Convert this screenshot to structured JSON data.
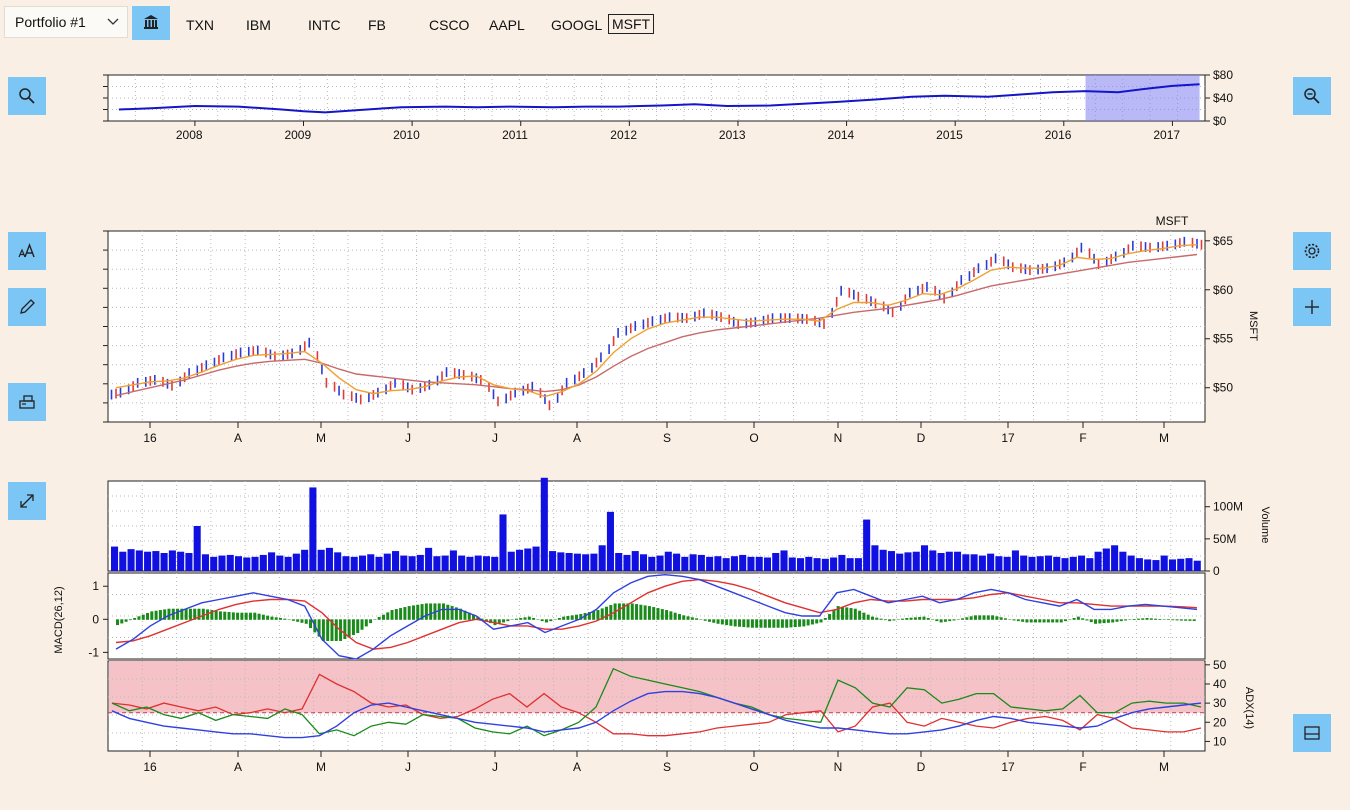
{
  "toolbar": {
    "portfolio_label": "Portfolio #1",
    "tickers": [
      "TXN",
      "IBM",
      "INTC",
      "FB",
      "CSCO",
      "AAPL",
      "GOOGL",
      "MSFT"
    ],
    "active_ticker": "MSFT"
  },
  "icons": {
    "bank": "bank-icon",
    "zoom_in": "search-icon",
    "zoom_out": "zoom-out-icon",
    "text": "text-size-icon",
    "draw": "pencil-icon",
    "print": "print-icon",
    "expand": "expand-icon",
    "settings": "gear-icon",
    "add": "plus-icon",
    "layout": "layout-icon"
  },
  "colors": {
    "background": "#f9efe4",
    "button": "#7cc6f5",
    "price_line": "#1515c8",
    "up_bar": "#2a3bd6",
    "down_bar": "#e03a3a",
    "ma_fast": "#f0a030",
    "ma_slow": "#c86a6a",
    "volume": "#1010e0",
    "macd_line": "#3040e0",
    "signal_line": "#e03030",
    "histogram": "#1a8a1a",
    "adx_band": "#f5c2c8"
  },
  "chart_data": [
    {
      "type": "line",
      "name": "overview",
      "x_ticks": [
        "2008",
        "2009",
        "2010",
        "2011",
        "2012",
        "2013",
        "2014",
        "2015",
        "2016",
        "2017"
      ],
      "y_ticks": [
        "$80",
        "$40",
        "$0"
      ],
      "ylim": [
        0,
        80
      ],
      "x": [
        2007.3,
        2007.6,
        2008.0,
        2008.4,
        2008.8,
        2009.0,
        2009.2,
        2009.5,
        2009.9,
        2010.3,
        2010.6,
        2010.9,
        2011.3,
        2011.6,
        2011.9,
        2012.3,
        2012.6,
        2012.9,
        2013.3,
        2013.6,
        2013.9,
        2014.3,
        2014.6,
        2014.9,
        2015.3,
        2015.6,
        2015.9,
        2016.2,
        2016.5,
        2016.8,
        2017.0,
        2017.25
      ],
      "y": [
        20,
        22,
        26,
        25,
        20,
        17,
        15,
        19,
        24,
        25,
        24,
        25,
        24,
        25,
        25,
        27,
        29,
        26,
        27,
        30,
        33,
        38,
        42,
        44,
        42,
        46,
        50,
        52,
        50,
        57,
        61,
        64
      ],
      "selection": [
        2016.2,
        2017.25
      ]
    },
    {
      "type": "ohlc",
      "name": "MSFT",
      "title": "MSFT",
      "ylabel": "MSFT",
      "x_ticks": [
        "16",
        "A",
        "M",
        "J",
        "J",
        "A",
        "S",
        "O",
        "N",
        "D",
        "17",
        "F",
        "M"
      ],
      "y_ticks": [
        "$65",
        "$60",
        "$55",
        "$50"
      ],
      "ylim": [
        46.5,
        66
      ],
      "close": [
        49.5,
        50.5,
        50.8,
        50.2,
        51.5,
        52.3,
        53.1,
        53.6,
        53.8,
        53.2,
        53.5,
        54.6,
        50.5,
        49.3,
        48.8,
        49.5,
        50.5,
        49.8,
        50.3,
        51.6,
        51.3,
        50.8,
        48.6,
        49.5,
        50.1,
        48.2,
        50.5,
        51.5,
        53.1,
        55.6,
        56.3,
        56.8,
        57.2,
        57.1,
        57.6,
        57.2,
        56.5,
        56.7,
        57.1,
        57.1,
        57.0,
        56.5,
        59.9,
        59.3,
        58.6,
        57.7,
        59.7,
        60.3,
        59.1,
        61.0,
        62.2,
        63.2,
        62.3,
        62.0,
        62.2,
        62.8,
        64.3,
        62.6,
        63.4,
        64.5,
        64.3,
        64.5,
        64.9,
        64.6
      ],
      "ma_fast": [
        50.0,
        50.3,
        50.6,
        50.7,
        51.0,
        51.6,
        52.3,
        52.9,
        53.3,
        53.4,
        53.5,
        53.7,
        52.5,
        51.0,
        49.8,
        49.4,
        49.7,
        49.8,
        50.1,
        50.7,
        51.1,
        51.2,
        50.3,
        49.9,
        49.7,
        49.1,
        49.6,
        50.4,
        51.7,
        53.6,
        55.0,
        56.0,
        56.6,
        56.9,
        57.2,
        57.2,
        57.0,
        56.8,
        56.9,
        57.0,
        57.0,
        56.8,
        58.0,
        58.7,
        58.7,
        58.4,
        58.9,
        59.6,
        59.5,
        60.1,
        61.0,
        62.0,
        62.3,
        62.2,
        62.2,
        62.5,
        63.3,
        63.1,
        63.2,
        63.7,
        64.0,
        64.2,
        64.5,
        64.6
      ],
      "ma_slow": [
        49.2,
        49.6,
        50.0,
        50.4,
        50.8,
        51.3,
        51.8,
        52.2,
        52.5,
        52.7,
        52.8,
        52.9,
        52.5,
        51.9,
        51.4,
        51.2,
        51.0,
        50.8,
        50.6,
        50.5,
        50.4,
        50.3,
        50.1,
        49.9,
        49.8,
        49.6,
        49.8,
        50.3,
        51.1,
        52.2,
        53.2,
        54.0,
        54.6,
        55.2,
        55.6,
        55.9,
        56.1,
        56.3,
        56.5,
        56.7,
        56.9,
        57.1,
        57.4,
        57.7,
        57.9,
        58.1,
        58.4,
        58.7,
        59.0,
        59.4,
        59.9,
        60.4,
        60.7,
        61.0,
        61.3,
        61.6,
        61.9,
        62.2,
        62.5,
        62.8,
        63.0,
        63.2,
        63.4,
        63.6
      ]
    },
    {
      "type": "bar",
      "name": "Volume",
      "ylabel": "Volume",
      "y_ticks": [
        "100M",
        "50M",
        "0"
      ],
      "ylim": [
        0,
        140
      ],
      "values": [
        38,
        30,
        34,
        32,
        30,
        31,
        28,
        32,
        30,
        28,
        70,
        26,
        22,
        24,
        25,
        23,
        21,
        22,
        25,
        29,
        24,
        22,
        27,
        33,
        130,
        33,
        36,
        29,
        23,
        22,
        24,
        26,
        22,
        27,
        31,
        24,
        23,
        25,
        36,
        23,
        24,
        32,
        24,
        22,
        24,
        23,
        22,
        88,
        30,
        33,
        35,
        38,
        145,
        31,
        29,
        28,
        27,
        26,
        27,
        40,
        92,
        28,
        25,
        31,
        26,
        22,
        24,
        30,
        27,
        22,
        26,
        25,
        22,
        23,
        20,
        23,
        25,
        22,
        22,
        21,
        28,
        32,
        21,
        20,
        22,
        20,
        19,
        21,
        25,
        20,
        20,
        80,
        40,
        33,
        31,
        27,
        29,
        30,
        40,
        32,
        28,
        30,
        30,
        26,
        26,
        24,
        27,
        23,
        22,
        32,
        24,
        22,
        23,
        24,
        22,
        20,
        22,
        24,
        20,
        30,
        35,
        40,
        30,
        24,
        20,
        18,
        17,
        24,
        18,
        19,
        20,
        16
      ],
      "spikes": [
        10,
        24,
        40,
        47,
        52,
        60,
        91
      ]
    },
    {
      "type": "line",
      "name": "MACD(26,12)",
      "ylabel": "MACD(26,12)",
      "y_ticks": [
        "1",
        "0",
        "-1"
      ],
      "ylim": [
        -1.2,
        1.4
      ],
      "macd": [
        -0.9,
        -0.6,
        -0.2,
        0.1,
        0.3,
        0.5,
        0.6,
        0.7,
        0.8,
        0.7,
        0.6,
        0.4,
        -0.6,
        -1.1,
        -1.2,
        -0.9,
        -0.5,
        -0.2,
        0.1,
        0.3,
        0.3,
        0.1,
        -0.3,
        -0.2,
        -0.1,
        -0.4,
        -0.2,
        0.0,
        0.3,
        0.8,
        1.1,
        1.3,
        1.35,
        1.3,
        1.2,
        1.0,
        0.8,
        0.6,
        0.4,
        0.2,
        0.1,
        0.1,
        0.8,
        0.9,
        0.7,
        0.5,
        0.6,
        0.7,
        0.5,
        0.6,
        0.8,
        0.9,
        0.8,
        0.6,
        0.5,
        0.4,
        0.6,
        0.3,
        0.3,
        0.4,
        0.45,
        0.4,
        0.35,
        0.3
      ],
      "signal": [
        -0.7,
        -0.65,
        -0.5,
        -0.3,
        -0.1,
        0.1,
        0.3,
        0.45,
        0.55,
        0.6,
        0.6,
        0.55,
        0.2,
        -0.3,
        -0.7,
        -0.9,
        -0.85,
        -0.7,
        -0.5,
        -0.3,
        -0.1,
        0.0,
        -0.1,
        -0.2,
        -0.2,
        -0.3,
        -0.3,
        -0.2,
        -0.05,
        0.2,
        0.5,
        0.8,
        1.0,
        1.15,
        1.2,
        1.15,
        1.05,
        0.9,
        0.7,
        0.5,
        0.35,
        0.2,
        0.3,
        0.5,
        0.6,
        0.55,
        0.55,
        0.6,
        0.6,
        0.6,
        0.65,
        0.75,
        0.8,
        0.7,
        0.6,
        0.5,
        0.5,
        0.45,
        0.4,
        0.4,
        0.4,
        0.4,
        0.38,
        0.35
      ]
    },
    {
      "type": "line",
      "name": "ADX(14)",
      "ylabel": "ADX(14)",
      "y_ticks": [
        "50",
        "40",
        "30",
        "20",
        "10"
      ],
      "ylim": [
        5,
        52
      ],
      "band": [
        25,
        52
      ],
      "adx": [
        26,
        22,
        20,
        18,
        17,
        16,
        15,
        14,
        14,
        13,
        12,
        12,
        13,
        18,
        25,
        29,
        30,
        28,
        26,
        24,
        22,
        20,
        19,
        18,
        17,
        15,
        16,
        17,
        20,
        26,
        31,
        35,
        36,
        36,
        35,
        33,
        30,
        27,
        24,
        21,
        19,
        17,
        17,
        16,
        15,
        14,
        14,
        15,
        16,
        18,
        21,
        23,
        22,
        20,
        19,
        18,
        17,
        18,
        22,
        25,
        27,
        28,
        29,
        30
      ],
      "plus_di": [
        30,
        26,
        28,
        24,
        22,
        25,
        21,
        24,
        23,
        22,
        27,
        24,
        14,
        16,
        13,
        18,
        20,
        19,
        24,
        23,
        22,
        17,
        15,
        14,
        18,
        13,
        16,
        20,
        28,
        48,
        44,
        42,
        40,
        38,
        36,
        33,
        30,
        28,
        24,
        22,
        21,
        20,
        42,
        38,
        30,
        28,
        38,
        37,
        30,
        32,
        35,
        35,
        28,
        27,
        26,
        27,
        34,
        25,
        25,
        30,
        31,
        30,
        30,
        28
      ],
      "minus_di": [
        30,
        29,
        27,
        30,
        28,
        26,
        28,
        24,
        25,
        27,
        25,
        27,
        45,
        40,
        36,
        30,
        28,
        29,
        24,
        22,
        23,
        27,
        32,
        35,
        28,
        35,
        28,
        25,
        20,
        14,
        14,
        13,
        13,
        14,
        15,
        17,
        18,
        19,
        20,
        24,
        25,
        26,
        15,
        18,
        28,
        30,
        20,
        18,
        22,
        20,
        18,
        17,
        20,
        22,
        23,
        21,
        16,
        24,
        22,
        17,
        16,
        15,
        15,
        17
      ]
    }
  ]
}
